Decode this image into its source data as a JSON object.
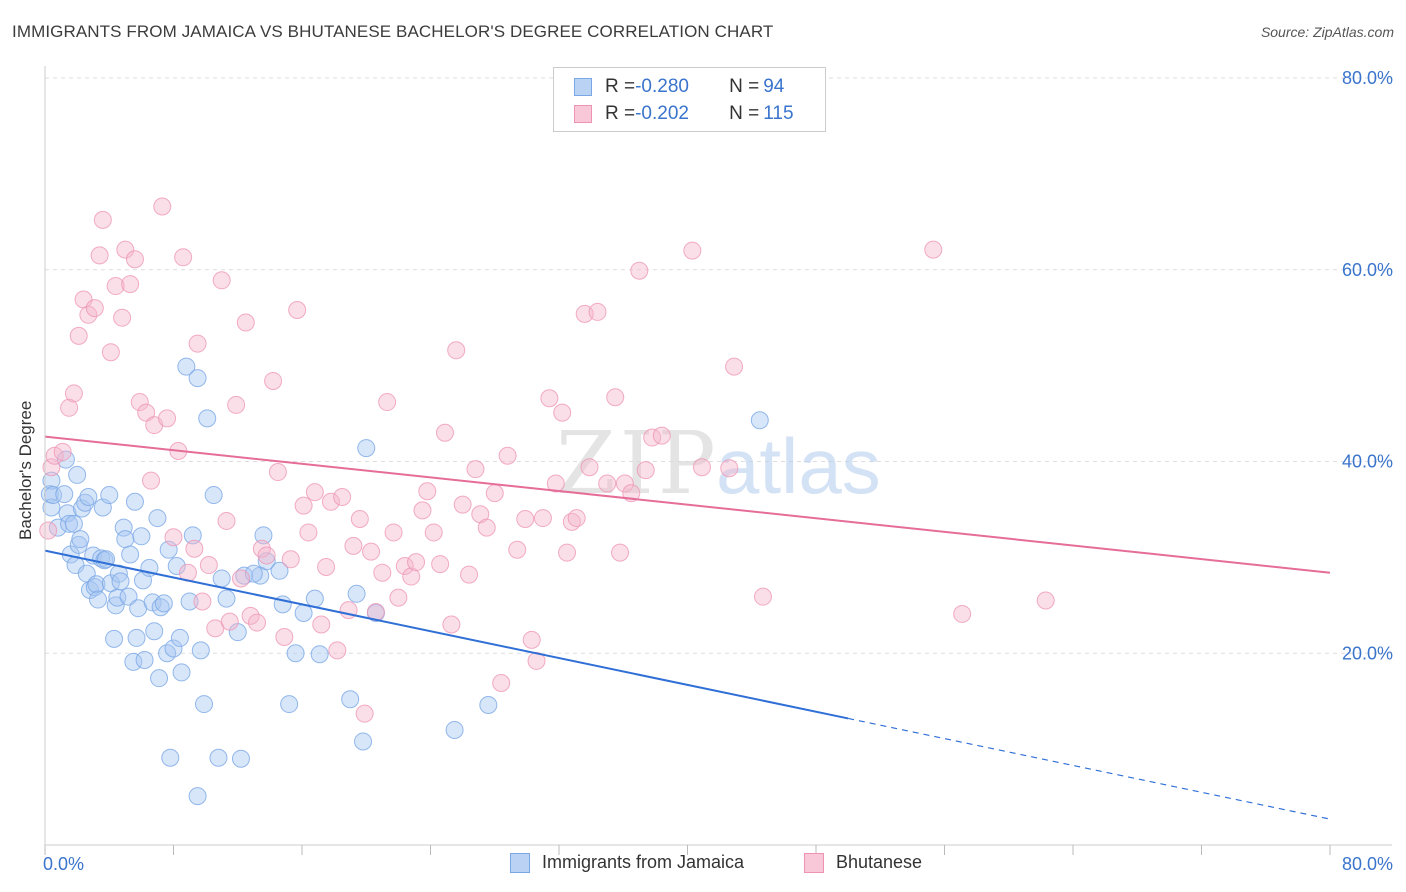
{
  "title": "IMMIGRANTS FROM JAMAICA VS BHUTANESE BACHELOR'S DEGREE CORRELATION CHART",
  "source": "Source: ZipAtlas.com",
  "watermark": {
    "zip": "ZIP",
    "atlas": "atlas"
  },
  "colors": {
    "blue_fill": "#a9c8f2",
    "blue_stroke": "#7aa8e6",
    "blue_line": "#2f6fd6",
    "pink_fill": "#f5b5cb",
    "pink_stroke": "#ee93b3",
    "pink_line": "#e56d98",
    "axis_label": "#3a74cc",
    "grid": "#dddddd"
  },
  "legend_top": {
    "rows": [
      {
        "r_label": "R = ",
        "r_value": "-0.280",
        "n_label": "N = ",
        "n_value": "94"
      },
      {
        "r_label": "R = ",
        "r_value": "-0.202",
        "n_label": "N = ",
        "n_value": "115"
      }
    ]
  },
  "chart_data": {
    "type": "scatter",
    "title": "IMMIGRANTS FROM JAMAICA VS BHUTANESE BACHELOR'S DEGREE CORRELATION CHART",
    "xlabel": "",
    "ylabel": "Bachelor's Degree",
    "xlim": [
      0,
      80
    ],
    "ylim": [
      0,
      80
    ],
    "x_tick_labels": [
      "0.0%",
      "80.0%"
    ],
    "y_tick_labels": [
      "20.0%",
      "40.0%",
      "60.0%",
      "80.0%"
    ],
    "y_ticks": [
      20,
      40,
      60,
      80
    ],
    "grid": true,
    "legend_position": "bottom",
    "series": [
      {
        "name": "Immigrants from Jamaica",
        "color": "#a9c8f2",
        "trend": {
          "x0": 0,
          "y0": 30.7,
          "x1": 80,
          "y1": 2.7,
          "solid_until_x": 50
        },
        "points": [
          [
            0.3,
            36.6
          ],
          [
            0.4,
            35.2
          ],
          [
            0.4,
            38.0
          ],
          [
            0.5,
            36.5
          ],
          [
            0.8,
            33.1
          ],
          [
            1.2,
            36.6
          ],
          [
            1.3,
            40.2
          ],
          [
            1.4,
            34.6
          ],
          [
            1.5,
            33.5
          ],
          [
            1.6,
            30.3
          ],
          [
            1.8,
            33.5
          ],
          [
            1.9,
            29.2
          ],
          [
            2.0,
            38.6
          ],
          [
            2.1,
            31.3
          ],
          [
            2.2,
            31.9
          ],
          [
            2.3,
            35.1
          ],
          [
            2.5,
            35.7
          ],
          [
            2.6,
            28.3
          ],
          [
            2.7,
            36.3
          ],
          [
            2.8,
            26.6
          ],
          [
            3.0,
            30.2
          ],
          [
            3.1,
            26.9
          ],
          [
            3.2,
            27.2
          ],
          [
            3.3,
            25.6
          ],
          [
            3.5,
            29.9
          ],
          [
            3.6,
            35.2
          ],
          [
            3.7,
            29.7
          ],
          [
            3.8,
            29.8
          ],
          [
            4.0,
            36.5
          ],
          [
            4.1,
            27.3
          ],
          [
            4.3,
            21.5
          ],
          [
            4.4,
            25.0
          ],
          [
            4.5,
            25.8
          ],
          [
            4.6,
            28.3
          ],
          [
            4.7,
            27.5
          ],
          [
            4.9,
            33.1
          ],
          [
            5.0,
            31.9
          ],
          [
            5.2,
            25.9
          ],
          [
            5.3,
            30.3
          ],
          [
            5.5,
            19.1
          ],
          [
            5.6,
            35.8
          ],
          [
            5.7,
            21.6
          ],
          [
            5.8,
            24.7
          ],
          [
            6.0,
            32.2
          ],
          [
            6.1,
            27.6
          ],
          [
            6.2,
            19.3
          ],
          [
            6.5,
            28.9
          ],
          [
            6.7,
            25.3
          ],
          [
            6.8,
            22.3
          ],
          [
            7.0,
            34.1
          ],
          [
            7.1,
            17.4
          ],
          [
            7.2,
            24.8
          ],
          [
            7.4,
            25.2
          ],
          [
            7.6,
            20.0
          ],
          [
            7.7,
            30.8
          ],
          [
            8.0,
            20.5
          ],
          [
            8.2,
            29.1
          ],
          [
            8.4,
            21.6
          ],
          [
            8.5,
            18.0
          ],
          [
            8.8,
            49.9
          ],
          [
            9.0,
            25.4
          ],
          [
            9.2,
            32.3
          ],
          [
            9.5,
            48.7
          ],
          [
            9.7,
            20.3
          ],
          [
            9.9,
            14.7
          ],
          [
            10.1,
            44.5
          ],
          [
            10.5,
            36.5
          ],
          [
            10.8,
            9.1
          ],
          [
            11.0,
            27.8
          ],
          [
            11.3,
            25.7
          ],
          [
            12.0,
            22.2
          ],
          [
            12.2,
            9.0
          ],
          [
            12.4,
            28.1
          ],
          [
            13.4,
            28.1
          ],
          [
            13.6,
            32.3
          ],
          [
            13.8,
            29.6
          ],
          [
            14.6,
            28.6
          ],
          [
            14.8,
            25.1
          ],
          [
            15.2,
            14.7
          ],
          [
            15.6,
            20.0
          ],
          [
            16.1,
            24.2
          ],
          [
            16.8,
            25.7
          ],
          [
            17.1,
            19.9
          ],
          [
            19.0,
            15.2
          ],
          [
            19.4,
            26.2
          ],
          [
            19.8,
            10.8
          ],
          [
            20.0,
            41.4
          ],
          [
            20.6,
            24.2
          ],
          [
            25.5,
            12.0
          ],
          [
            27.6,
            14.6
          ],
          [
            44.5,
            44.3
          ],
          [
            7.8,
            9.1
          ],
          [
            9.5,
            5.1
          ],
          [
            13.0,
            28.3
          ]
        ]
      },
      {
        "name": "Bhutanese",
        "color": "#f5b5cb",
        "trend": {
          "x0": 0,
          "y0": 42.6,
          "x1": 80,
          "y1": 28.4
        },
        "points": [
          [
            0.2,
            32.8
          ],
          [
            0.4,
            39.4
          ],
          [
            0.6,
            40.6
          ],
          [
            1.1,
            41.0
          ],
          [
            1.5,
            45.6
          ],
          [
            1.8,
            47.1
          ],
          [
            2.1,
            53.1
          ],
          [
            2.4,
            56.9
          ],
          [
            2.7,
            55.3
          ],
          [
            3.1,
            56.0
          ],
          [
            3.4,
            61.5
          ],
          [
            3.6,
            65.2
          ],
          [
            4.1,
            51.4
          ],
          [
            4.4,
            58.3
          ],
          [
            4.8,
            55.0
          ],
          [
            5.0,
            62.1
          ],
          [
            5.3,
            58.5
          ],
          [
            5.6,
            61.1
          ],
          [
            5.9,
            46.2
          ],
          [
            6.3,
            45.1
          ],
          [
            6.6,
            38.0
          ],
          [
            6.8,
            43.8
          ],
          [
            7.3,
            66.6
          ],
          [
            7.6,
            44.5
          ],
          [
            8.0,
            32.1
          ],
          [
            8.3,
            41.1
          ],
          [
            8.6,
            61.3
          ],
          [
            8.9,
            28.4
          ],
          [
            9.3,
            30.9
          ],
          [
            9.5,
            52.3
          ],
          [
            9.8,
            25.4
          ],
          [
            10.2,
            29.2
          ],
          [
            10.6,
            22.6
          ],
          [
            11.0,
            58.9
          ],
          [
            11.3,
            33.8
          ],
          [
            11.5,
            23.3
          ],
          [
            11.9,
            45.9
          ],
          [
            12.2,
            27.8
          ],
          [
            12.5,
            54.5
          ],
          [
            12.8,
            23.9
          ],
          [
            13.2,
            23.2
          ],
          [
            13.5,
            30.9
          ],
          [
            13.8,
            30.2
          ],
          [
            14.2,
            48.4
          ],
          [
            14.5,
            38.9
          ],
          [
            14.9,
            21.7
          ],
          [
            15.3,
            29.8
          ],
          [
            15.7,
            55.8
          ],
          [
            16.1,
            35.4
          ],
          [
            16.4,
            32.6
          ],
          [
            16.8,
            36.8
          ],
          [
            17.2,
            23.0
          ],
          [
            17.5,
            29.0
          ],
          [
            17.8,
            35.8
          ],
          [
            18.2,
            20.3
          ],
          [
            18.5,
            36.3
          ],
          [
            18.9,
            24.5
          ],
          [
            19.2,
            31.2
          ],
          [
            19.6,
            34.0
          ],
          [
            19.9,
            13.7
          ],
          [
            20.3,
            30.6
          ],
          [
            20.6,
            24.3
          ],
          [
            21.0,
            28.4
          ],
          [
            21.3,
            46.2
          ],
          [
            21.7,
            32.6
          ],
          [
            22.0,
            25.8
          ],
          [
            22.4,
            29.1
          ],
          [
            22.8,
            28.0
          ],
          [
            23.1,
            29.5
          ],
          [
            23.5,
            34.9
          ],
          [
            23.8,
            36.9
          ],
          [
            24.2,
            32.6
          ],
          [
            24.6,
            29.3
          ],
          [
            24.9,
            43.0
          ],
          [
            25.3,
            23.0
          ],
          [
            25.6,
            51.6
          ],
          [
            26.0,
            35.5
          ],
          [
            26.4,
            28.2
          ],
          [
            26.8,
            39.2
          ],
          [
            27.1,
            34.5
          ],
          [
            27.5,
            33.1
          ],
          [
            28.0,
            36.7
          ],
          [
            28.4,
            16.9
          ],
          [
            28.8,
            40.6
          ],
          [
            29.4,
            30.8
          ],
          [
            29.9,
            34.0
          ],
          [
            30.3,
            21.4
          ],
          [
            30.6,
            19.2
          ],
          [
            31.0,
            34.1
          ],
          [
            31.4,
            46.6
          ],
          [
            31.8,
            37.7
          ],
          [
            32.2,
            45.1
          ],
          [
            32.5,
            30.5
          ],
          [
            32.8,
            33.7
          ],
          [
            33.1,
            34.1
          ],
          [
            33.6,
            55.4
          ],
          [
            33.9,
            39.4
          ],
          [
            34.4,
            55.6
          ],
          [
            35.0,
            37.7
          ],
          [
            35.5,
            46.7
          ],
          [
            35.8,
            30.5
          ],
          [
            36.1,
            37.7
          ],
          [
            36.5,
            36.7
          ],
          [
            37.0,
            59.9
          ],
          [
            37.4,
            39.1
          ],
          [
            37.8,
            42.5
          ],
          [
            38.4,
            42.7
          ],
          [
            40.3,
            62.0
          ],
          [
            40.9,
            39.4
          ],
          [
            42.6,
            39.3
          ],
          [
            42.9,
            49.9
          ],
          [
            44.7,
            25.9
          ],
          [
            55.3,
            62.1
          ],
          [
            57.1,
            24.1
          ],
          [
            62.3,
            25.5
          ]
        ]
      }
    ]
  },
  "bottom_legend": [
    {
      "label": "Immigrants from Jamaica"
    },
    {
      "label": "Bhutanese"
    }
  ]
}
